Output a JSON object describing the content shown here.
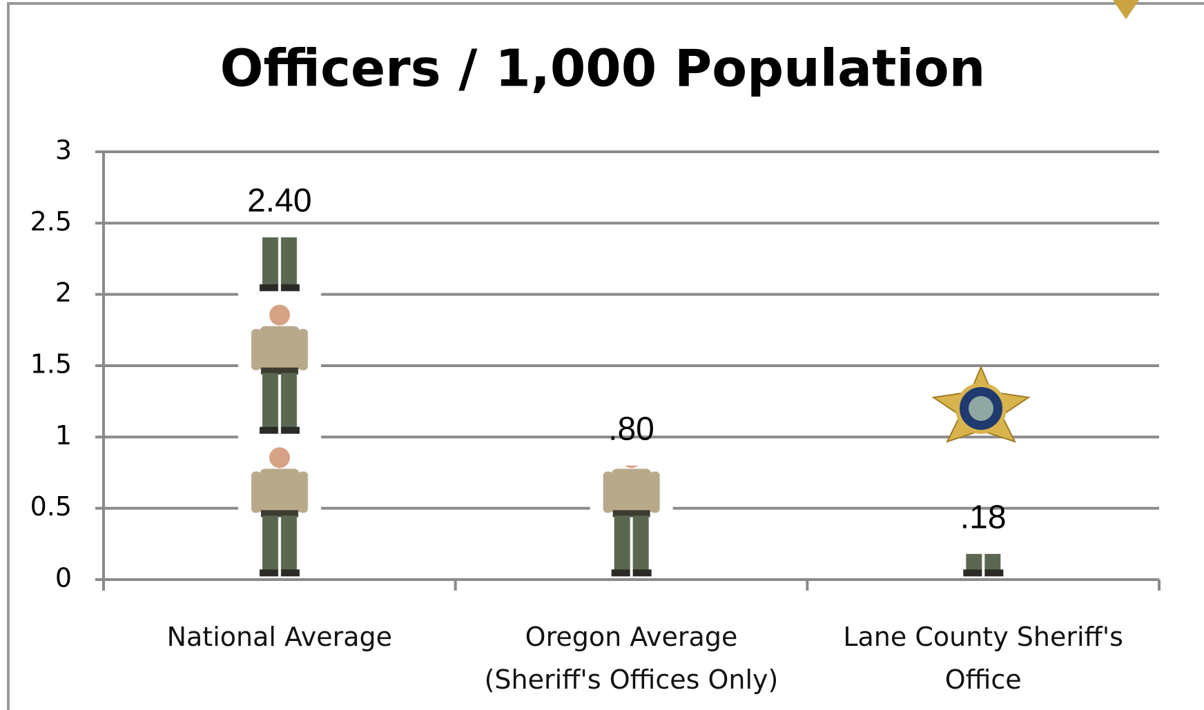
{
  "chart_data": {
    "type": "bar",
    "title": "Officers / 1,000 Population",
    "categories": [
      "National Average",
      "Oregon Average (Sheriff's Offices Only)",
      "Lane County Sheriff's Office"
    ],
    "values": [
      2.4,
      0.8,
      0.18
    ],
    "value_labels": [
      "2.40",
      ".80",
      ".18"
    ],
    "ylim": [
      0,
      3
    ],
    "yticks": [
      0,
      0.5,
      1,
      1.5,
      2,
      2.5,
      3
    ],
    "grid": true
  }
}
